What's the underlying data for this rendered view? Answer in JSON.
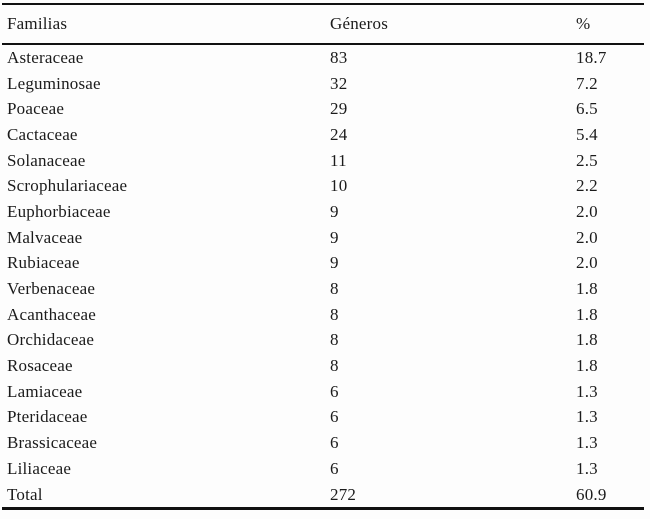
{
  "page": {
    "background_color": "#fdfdfd",
    "text_color": "#1b1b1b",
    "rule_color": "#111111",
    "description": "Scanned journal table listing plant families with number of genera and percentage"
  },
  "table": {
    "headers": [
      "Familias",
      "Géneros",
      "%"
    ],
    "rows": [
      {
        "familia": "Asteraceae",
        "generos": "83",
        "percent": "18.7"
      },
      {
        "familia": "Leguminosae",
        "generos": "32",
        "percent": "7.2"
      },
      {
        "familia": "Poaceae",
        "generos": "29",
        "percent": "6.5"
      },
      {
        "familia": "Cactaceae",
        "generos": "24",
        "percent": "5.4"
      },
      {
        "familia": "Solanaceae",
        "generos": "11",
        "percent": "2.5"
      },
      {
        "familia": "Scrophulariaceae",
        "generos": "10",
        "percent": "2.2"
      },
      {
        "familia": "Euphorbiaceae",
        "generos": "9",
        "percent": "2.0"
      },
      {
        "familia": "Malvaceae",
        "generos": "9",
        "percent": "2.0"
      },
      {
        "familia": "Rubiaceae",
        "generos": "9",
        "percent": "2.0"
      },
      {
        "familia": "Verbenaceae",
        "generos": "8",
        "percent": "1.8"
      },
      {
        "familia": "Acanthaceae",
        "generos": "8",
        "percent": "1.8"
      },
      {
        "familia": "Orchidaceae",
        "generos": "8",
        "percent": "1.8"
      },
      {
        "familia": "Rosaceae",
        "generos": "8",
        "percent": "1.8"
      },
      {
        "familia": "Lamiaceae",
        "generos": "6",
        "percent": "1.3"
      },
      {
        "familia": "Pteridaceae",
        "generos": "6",
        "percent": "1.3"
      },
      {
        "familia": "Brassicaceae",
        "generos": "6",
        "percent": "1.3"
      },
      {
        "familia": "Liliaceae",
        "generos": "6",
        "percent": "1.3"
      },
      {
        "familia": "Total",
        "generos": "272",
        "percent": "60.9"
      }
    ]
  }
}
